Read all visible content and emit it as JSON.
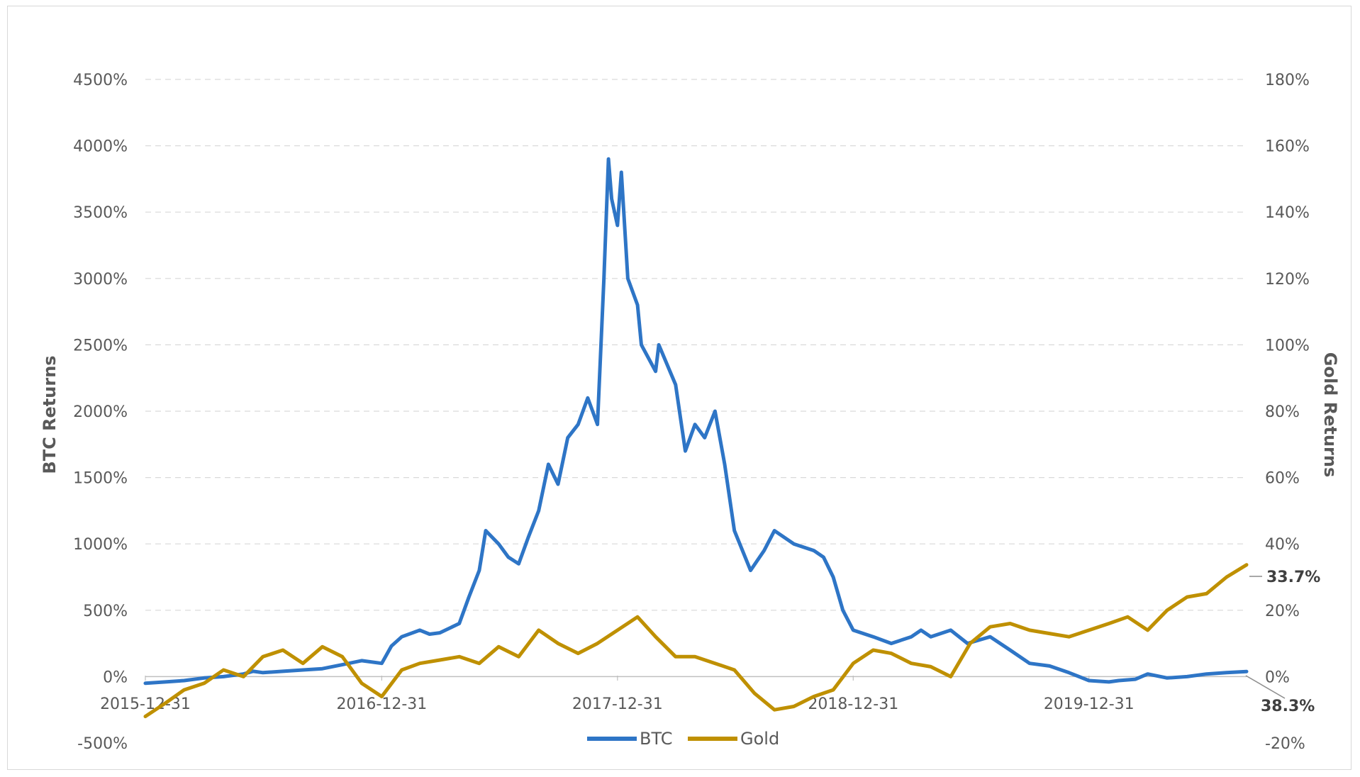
{
  "chart_data": {
    "type": "line",
    "title": "",
    "x_ticks": [
      "2015-12-31",
      "2016-12-31",
      "2017-12-31",
      "2018-12-31",
      "2019-12-31"
    ],
    "x_range": [
      "2015-12-31",
      "2020-08-31"
    ],
    "ylabel_left": "BTC Returns",
    "ylabel_right": "Gold Returns",
    "ylim_left": [
      -500,
      4500
    ],
    "ylim_right": [
      -20,
      180
    ],
    "y_ticks_left": [
      "4500%",
      "4000%",
      "3500%",
      "3000%",
      "2500%",
      "2000%",
      "1500%",
      "1000%",
      "500%",
      "0%",
      "-500%"
    ],
    "y_ticks_right": [
      "180%",
      "160%",
      "140%",
      "120%",
      "100%",
      "80%",
      "60%",
      "40%",
      "20%",
      "0%",
      "-20%"
    ],
    "grid": "horizontal-dashed",
    "legend": "bottom-center",
    "annotations": {
      "gold_end": "33.7%",
      "btc_end": "38.3%"
    },
    "series": [
      {
        "name": "BTC",
        "axis": "left",
        "color": "#2e75c6",
        "x": [
          "2015-12-31",
          "2016-01-31",
          "2016-02-29",
          "2016-03-31",
          "2016-04-30",
          "2016-05-31",
          "2016-06-15",
          "2016-06-30",
          "2016-07-31",
          "2016-08-31",
          "2016-09-30",
          "2016-10-31",
          "2016-11-30",
          "2016-12-31",
          "2017-01-15",
          "2017-01-31",
          "2017-02-28",
          "2017-03-15",
          "2017-03-31",
          "2017-04-30",
          "2017-05-15",
          "2017-05-31",
          "2017-06-10",
          "2017-06-30",
          "2017-07-15",
          "2017-07-31",
          "2017-08-15",
          "2017-08-31",
          "2017-09-15",
          "2017-09-30",
          "2017-10-15",
          "2017-10-31",
          "2017-11-15",
          "2017-11-30",
          "2017-12-10",
          "2017-12-17",
          "2017-12-22",
          "2017-12-31",
          "2018-01-06",
          "2018-01-16",
          "2018-01-31",
          "2018-02-06",
          "2018-02-28",
          "2018-03-05",
          "2018-03-31",
          "2018-04-15",
          "2018-04-30",
          "2018-05-15",
          "2018-05-31",
          "2018-06-15",
          "2018-06-30",
          "2018-07-25",
          "2018-08-15",
          "2018-08-31",
          "2018-09-30",
          "2018-10-31",
          "2018-11-15",
          "2018-11-30",
          "2018-12-15",
          "2018-12-31",
          "2019-01-31",
          "2019-02-28",
          "2019-03-31",
          "2019-04-15",
          "2019-04-30",
          "2019-05-31",
          "2019-06-26",
          "2019-07-31",
          "2019-08-31",
          "2019-09-30",
          "2019-10-31",
          "2019-11-30",
          "2019-12-31",
          "2020-01-31",
          "2020-02-15",
          "2020-03-12",
          "2020-03-31",
          "2020-04-30",
          "2020-05-31",
          "2020-06-30",
          "2020-07-31",
          "2020-08-31"
        ],
        "values": [
          -50,
          -40,
          -30,
          -10,
          0,
          20,
          40,
          30,
          40,
          50,
          60,
          90,
          120,
          100,
          230,
          300,
          350,
          320,
          330,
          400,
          600,
          800,
          1100,
          1000,
          900,
          850,
          1050,
          1250,
          1600,
          1450,
          1800,
          1900,
          2100,
          1900,
          3000,
          3900,
          3600,
          3400,
          3800,
          3000,
          2800,
          2500,
          2300,
          2500,
          2200,
          1700,
          1900,
          1800,
          2000,
          1600,
          1100,
          800,
          950,
          1100,
          1000,
          950,
          900,
          750,
          500,
          350,
          300,
          250,
          300,
          350,
          300,
          350,
          250,
          300,
          200,
          100,
          80,
          30,
          -30,
          -40,
          -30,
          -20,
          20,
          -10,
          0,
          20,
          30,
          38.3
        ]
      },
      {
        "name": "Gold",
        "axis": "right",
        "color": "#bf9000",
        "x": [
          "2015-12-31",
          "2016-01-31",
          "2016-02-29",
          "2016-03-31",
          "2016-04-30",
          "2016-05-31",
          "2016-06-30",
          "2016-07-31",
          "2016-08-31",
          "2016-09-30",
          "2016-10-31",
          "2016-11-30",
          "2016-12-31",
          "2017-01-31",
          "2017-02-28",
          "2017-03-31",
          "2017-04-30",
          "2017-05-31",
          "2017-06-30",
          "2017-07-31",
          "2017-08-31",
          "2017-09-30",
          "2017-10-31",
          "2017-11-30",
          "2017-12-31",
          "2018-01-31",
          "2018-02-28",
          "2018-03-31",
          "2018-04-30",
          "2018-05-31",
          "2018-06-30",
          "2018-07-31",
          "2018-08-31",
          "2018-09-30",
          "2018-10-31",
          "2018-11-30",
          "2018-12-31",
          "2019-01-31",
          "2019-02-28",
          "2019-03-31",
          "2019-04-30",
          "2019-05-31",
          "2019-06-30",
          "2019-07-31",
          "2019-08-31",
          "2019-09-30",
          "2019-10-31",
          "2019-11-30",
          "2019-12-31",
          "2020-01-31",
          "2020-02-29",
          "2020-03-31",
          "2020-04-30",
          "2020-05-31",
          "2020-06-30",
          "2020-07-31",
          "2020-08-31"
        ],
        "values": [
          -12,
          -8,
          -4,
          -2,
          2,
          0,
          6,
          8,
          4,
          9,
          6,
          -2,
          -6,
          2,
          4,
          5,
          6,
          4,
          9,
          6,
          14,
          10,
          7,
          10,
          14,
          18,
          12,
          6,
          6,
          4,
          2,
          -5,
          -10,
          -9,
          -6,
          -4,
          4,
          8,
          7,
          4,
          3,
          0,
          10,
          15,
          16,
          14,
          13,
          12,
          14,
          16,
          18,
          14,
          20,
          24,
          25,
          30,
          33.7
        ]
      }
    ]
  },
  "legend": {
    "btc_label": "BTC",
    "gold_label": "Gold"
  }
}
